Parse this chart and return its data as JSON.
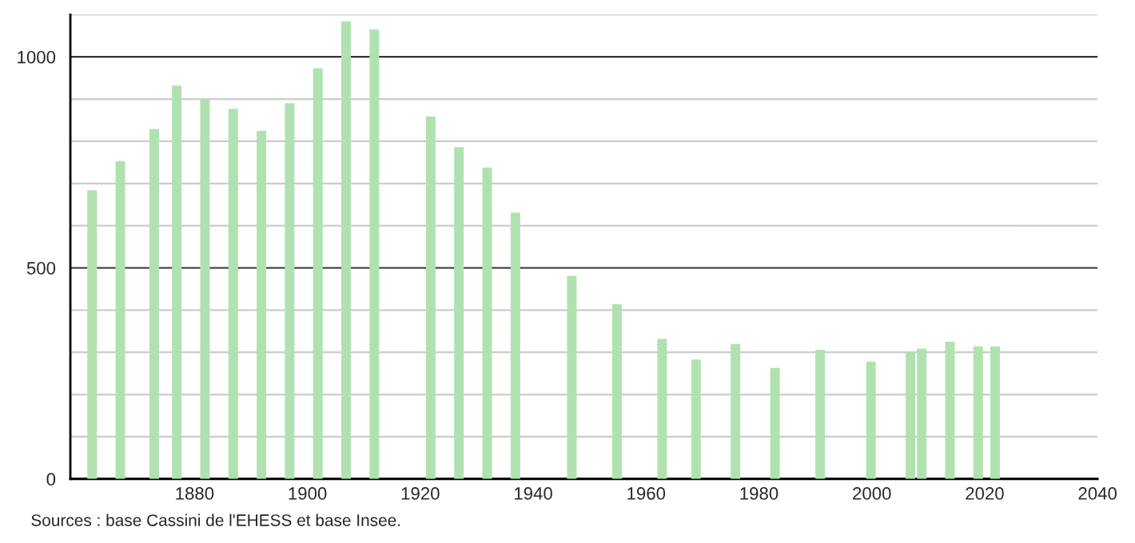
{
  "chart_data": {
    "type": "bar",
    "x": [
      1861,
      1866,
      1872,
      1876,
      1881,
      1886,
      1891,
      1896,
      1901,
      1906,
      1911,
      1921,
      1926,
      1931,
      1936,
      1946,
      1954,
      1962,
      1968,
      1975,
      1982,
      1990,
      1999,
      2006,
      2008,
      2013,
      2018,
      2021
    ],
    "values": [
      684,
      753,
      829,
      932,
      900,
      877,
      825,
      890,
      973,
      1084,
      1065,
      859,
      786,
      738,
      631,
      481,
      414,
      332,
      283,
      320,
      263,
      306,
      278,
      302,
      309,
      325,
      314,
      314
    ],
    "color": "#b0e2b0",
    "xlim": [
      1858,
      2040
    ],
    "xticks": [
      1880,
      1900,
      1920,
      1940,
      1960,
      1980,
      2000,
      2020,
      2040
    ],
    "ylim": [
      0,
      1100
    ],
    "yticks": [
      0,
      {
        "value": 100,
        "label": null
      },
      {
        "value": 200,
        "label": null
      },
      {
        "value": 300,
        "label": null
      },
      {
        "value": 400,
        "label": null
      },
      500,
      {
        "value": 600,
        "label": null
      },
      {
        "value": 700,
        "label": null
      },
      {
        "value": 800,
        "label": null
      },
      {
        "value": 900,
        "label": null
      },
      1000,
      {
        "value": 1100,
        "label": null
      }
    ],
    "grid": "y",
    "annotations": [
      "Sources : base Cassini de l'EHESS et base Insee."
    ]
  }
}
